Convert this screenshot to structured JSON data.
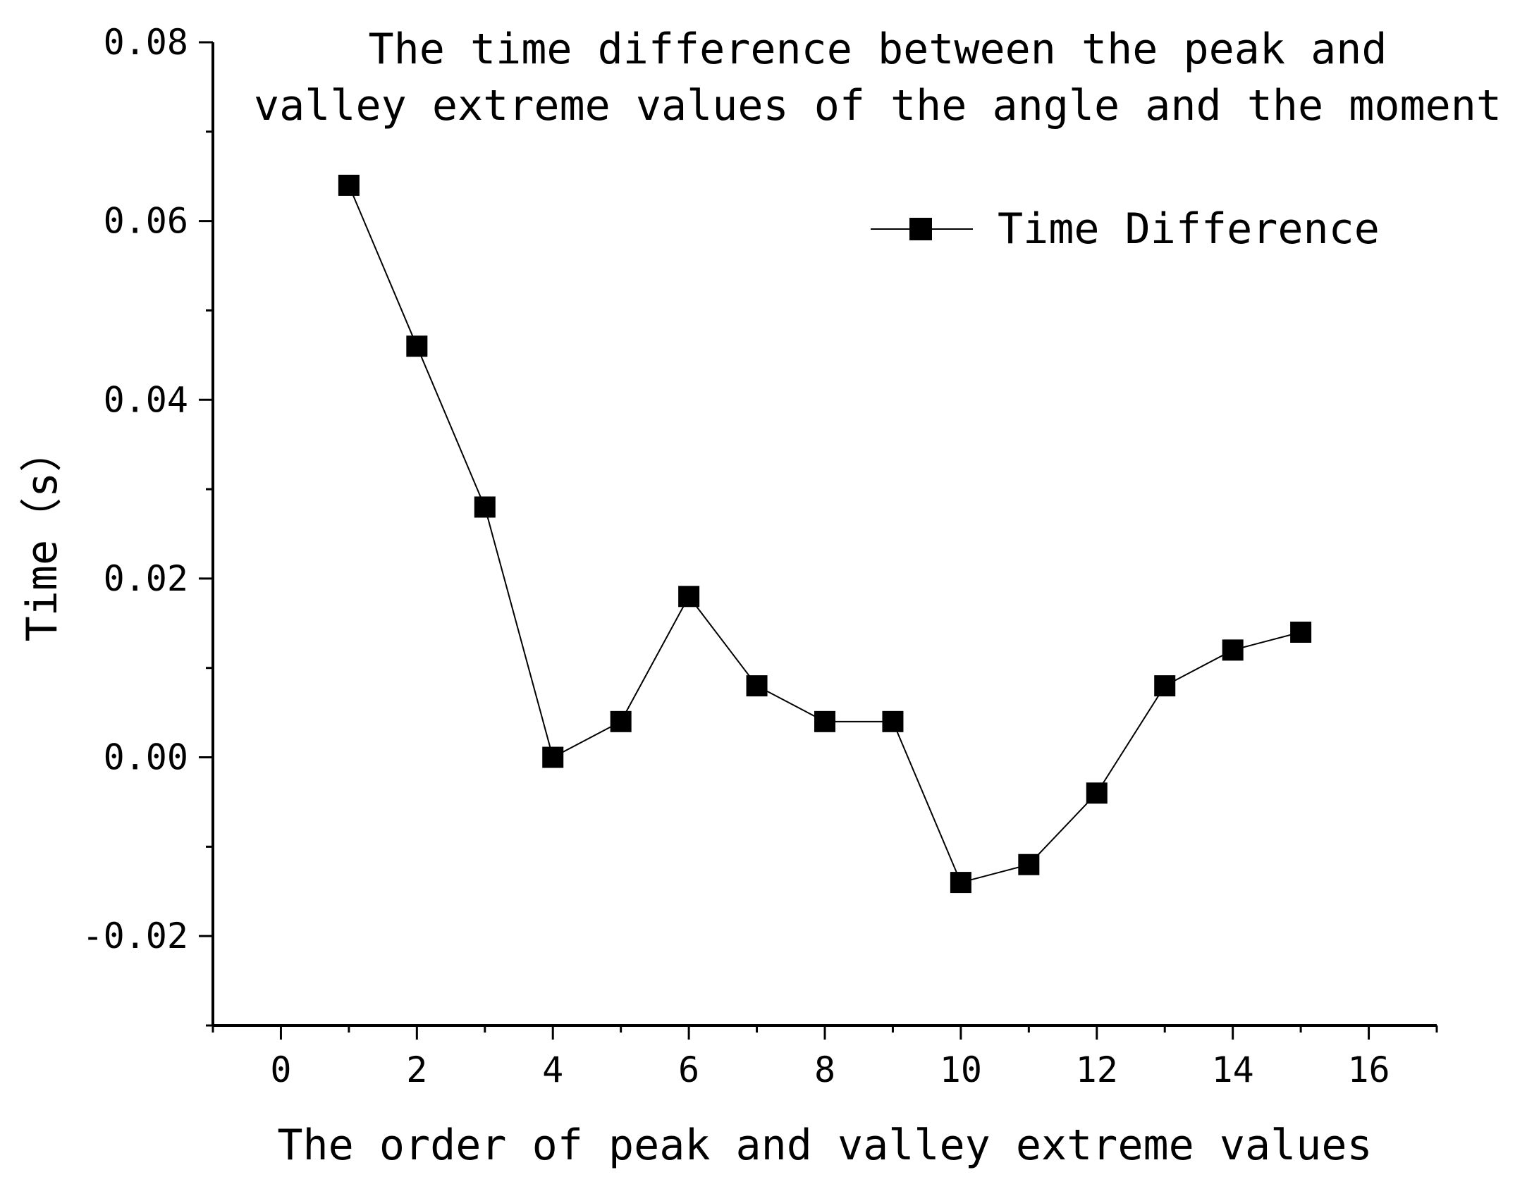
{
  "chart_data": {
    "type": "line",
    "title_lines": [
      "The time difference between the peak and",
      "valley extreme values of the angle and the moment"
    ],
    "xlabel": "The order of peak and valley extreme values",
    "ylabel": "Time（s）",
    "xlim": [
      -1,
      17
    ],
    "ylim": [
      -0.03,
      0.08
    ],
    "x_ticks": [
      0,
      2,
      4,
      6,
      8,
      10,
      12,
      14,
      16
    ],
    "x_tick_labels": [
      "0",
      "2",
      "4",
      "6",
      "8",
      "10",
      "12",
      "14",
      "16"
    ],
    "y_ticks": [
      -0.02,
      0.0,
      0.02,
      0.04,
      0.06,
      0.08
    ],
    "y_tick_labels": [
      "-0.02",
      "0.00",
      "0.02",
      "0.04",
      "0.06",
      "0.08"
    ],
    "legend_position": "top-right",
    "grid": false,
    "series": [
      {
        "name": "Time Difference",
        "marker": "square",
        "color": "#000000",
        "x": [
          1,
          2,
          3,
          4,
          5,
          6,
          7,
          8,
          9,
          10,
          11,
          12,
          13,
          14,
          15
        ],
        "values": [
          0.064,
          0.046,
          0.028,
          0.0,
          0.004,
          0.018,
          0.008,
          0.004,
          0.004,
          -0.014,
          -0.012,
          -0.004,
          0.008,
          0.012,
          0.014
        ]
      }
    ]
  }
}
